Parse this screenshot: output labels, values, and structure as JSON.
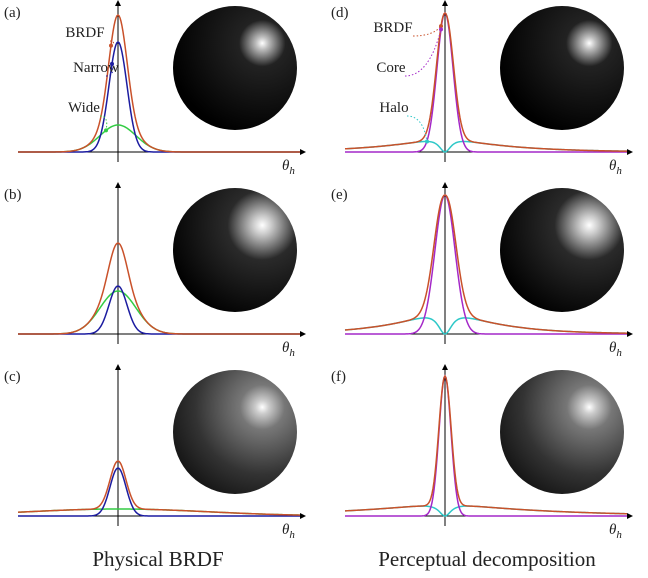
{
  "columns": [
    {
      "caption": "Physical BRDF",
      "panels": [
        {
          "label": "(a)",
          "annotations": [
            "BRDF",
            "Narrow",
            "Wide"
          ]
        },
        {
          "label": "(b)"
        },
        {
          "label": "(c)"
        }
      ]
    },
    {
      "caption": "Perceptual decomposition",
      "panels": [
        {
          "label": "(d)",
          "annotations": [
            "BRDF",
            "Core",
            "Halo"
          ]
        },
        {
          "label": "(e)"
        },
        {
          "label": "(f)"
        }
      ]
    }
  ],
  "axis_label": {
    "symbol": "θ",
    "subscript": "h"
  }
}
